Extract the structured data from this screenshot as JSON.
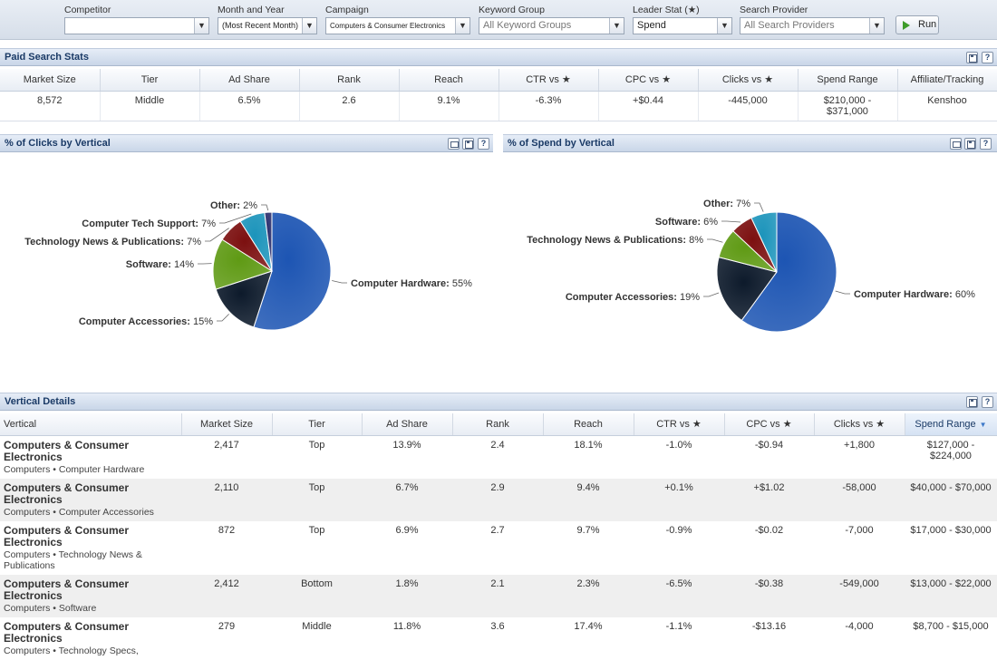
{
  "filters": [
    {
      "label": "Competitor",
      "value": "",
      "grey": false
    },
    {
      "label": "Month and Year",
      "value": "(Most Recent Month)",
      "grey": false
    },
    {
      "label": "Campaign",
      "value": "Computers & Consumer Electronics",
      "grey": false
    },
    {
      "label": "Keyword Group",
      "value": "All Keyword Groups",
      "grey": true
    },
    {
      "label": "Leader Stat (★)",
      "value": "Spend",
      "grey": false
    },
    {
      "label": "Search Provider",
      "value": "All Search Providers",
      "grey": true
    }
  ],
  "run_label": "Run",
  "paid_stats": {
    "title": "Paid Search Stats",
    "headers": [
      "Market Size",
      "Tier",
      "Ad Share",
      "Rank",
      "Reach",
      "CTR vs ★",
      "CPC vs ★",
      "Clicks vs ★",
      "Spend Range",
      "Affiliate/Tracking"
    ],
    "row": [
      "8,572",
      "Middle",
      "6.5%",
      "2.6",
      "9.1%",
      "-6.3%",
      "+$0.44",
      "-445,000",
      "$210,000 - $371,000",
      "Kenshoo"
    ]
  },
  "clicks_chart": {
    "title": "% of Clicks by Vertical",
    "icons": [
      "print-icon",
      "save-icon",
      "help-icon"
    ]
  },
  "spend_chart": {
    "title": "% of Spend by Vertical",
    "icons": [
      "print-icon",
      "save-icon",
      "help-icon"
    ]
  },
  "chart_data": [
    {
      "type": "pie",
      "title": "% of Clicks by Vertical",
      "categories": [
        "Computer Hardware",
        "Computer Accessories",
        "Software",
        "Technology News & Publications",
        "Computer Tech Support",
        "Other"
      ],
      "values": [
        55,
        15,
        14,
        7,
        7,
        2
      ],
      "colors": [
        "#1d55b3",
        "#0d1a2b",
        "#5f9a14",
        "#7c1010",
        "#1c94bb",
        "#2a2f6e"
      ]
    },
    {
      "type": "pie",
      "title": "% of Spend by Vertical",
      "categories": [
        "Computer Hardware",
        "Computer Accessories",
        "Technology News & Publications",
        "Software",
        "Other"
      ],
      "values": [
        60,
        19,
        8,
        6,
        7
      ],
      "colors": [
        "#1d55b3",
        "#0d1a2b",
        "#5f9a14",
        "#7c1010",
        "#1c94bb"
      ]
    }
  ],
  "details": {
    "title": "Vertical Details",
    "headers": [
      "Vertical",
      "Market Size",
      "Tier",
      "Ad Share",
      "Rank",
      "Reach",
      "CTR vs ★",
      "CPC vs ★",
      "Clicks vs ★",
      "Spend Range"
    ],
    "sort_indicator": "▼",
    "rows": [
      {
        "name": "Computers & Consumer Electronics",
        "sub": "Computers • Computer Hardware",
        "cells": [
          "2,417",
          "Top",
          "13.9%",
          "2.4",
          "18.1%",
          "-1.0%",
          "-$0.94",
          "+1,800",
          "$127,000 - $224,000"
        ]
      },
      {
        "name": "Computers & Consumer Electronics",
        "sub": "Computers • Computer Accessories",
        "cells": [
          "2,110",
          "Top",
          "6.7%",
          "2.9",
          "9.4%",
          "+0.1%",
          "+$1.02",
          "-58,000",
          "$40,000 - $70,000"
        ]
      },
      {
        "name": "Computers & Consumer Electronics",
        "sub": "Computers • Technology News & Publications",
        "cells": [
          "872",
          "Top",
          "6.9%",
          "2.7",
          "9.7%",
          "-0.9%",
          "-$0.02",
          "-7,000",
          "$17,000 - $30,000"
        ]
      },
      {
        "name": "Computers & Consumer Electronics",
        "sub": "Computers • Software",
        "cells": [
          "2,412",
          "Bottom",
          "1.8%",
          "2.1",
          "2.3%",
          "-6.5%",
          "-$0.38",
          "-549,000",
          "$13,000 - $22,000"
        ]
      },
      {
        "name": "Computers & Consumer Electronics",
        "sub": "Computers • Technology Specs,",
        "cells": [
          "279",
          "Middle",
          "11.8%",
          "3.6",
          "17.4%",
          "-1.1%",
          "-$13.16",
          "-4,000",
          "$8,700 - $15,000"
        ]
      }
    ]
  }
}
